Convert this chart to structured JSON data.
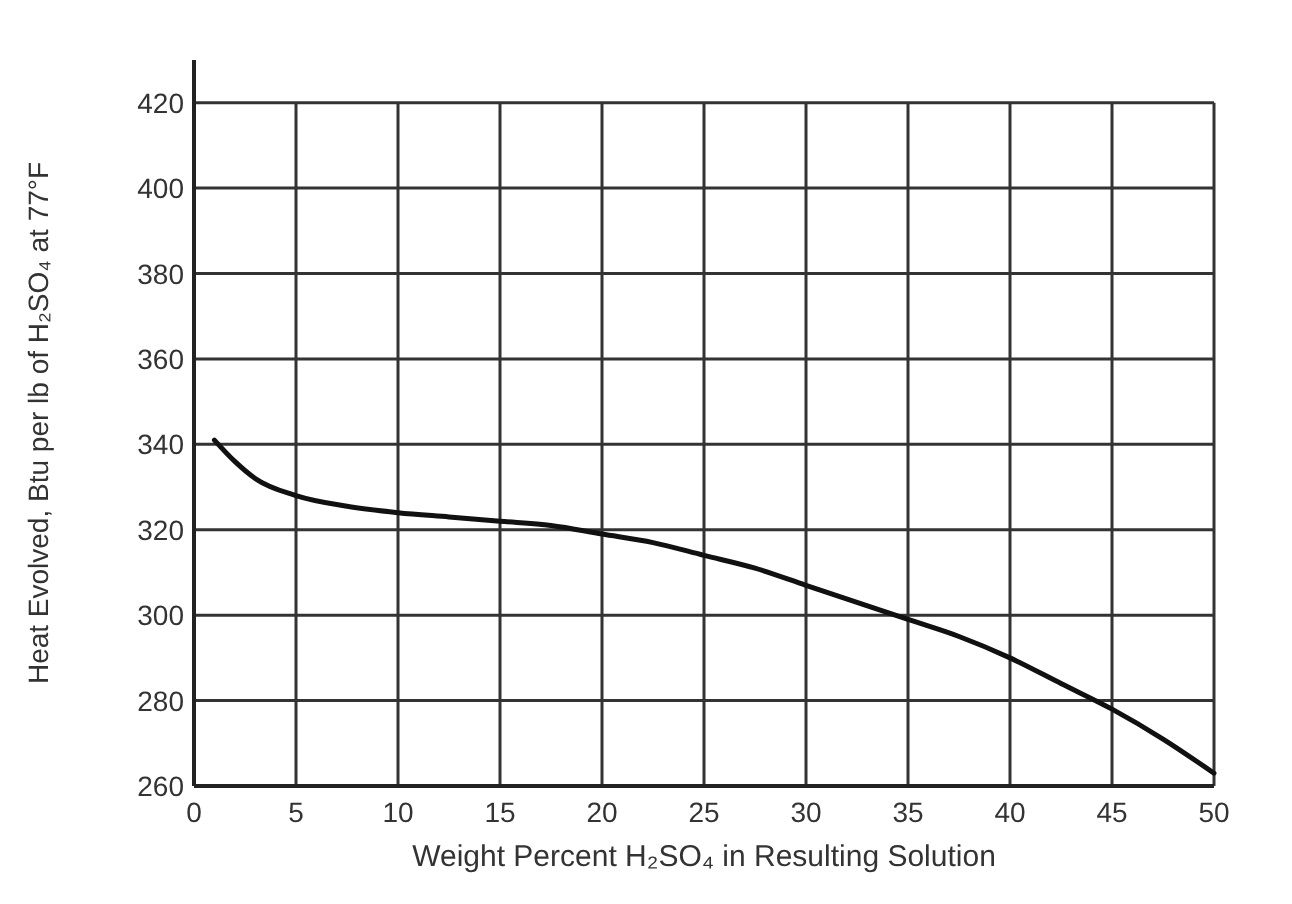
{
  "chart_data": {
    "type": "line",
    "xlabel": "Weight Percent H₂SO₄ in Resulting Solution",
    "ylabel": "Heat Evolved, Btu per lb of H₂SO₄ at 77°F",
    "x": [
      1,
      2,
      3,
      5,
      7.5,
      10,
      12.5,
      15,
      17.5,
      20,
      22.5,
      25,
      27.5,
      30,
      32.5,
      35,
      37.5,
      40,
      42.5,
      45,
      47.5,
      50
    ],
    "series": [
      {
        "color": "#111111",
        "values": [
          341,
          336,
          332,
          328,
          325.5,
          324,
          323,
          322,
          321,
          319,
          317,
          314,
          311,
          307,
          303,
          299,
          295,
          290,
          284,
          278,
          271,
          263
        ]
      }
    ],
    "xlim": [
      0,
      50
    ],
    "xticks": [
      0,
      5,
      10,
      15,
      20,
      25,
      30,
      35,
      40,
      45,
      50
    ],
    "ylim": [
      260,
      430
    ],
    "yticks": [
      260,
      280,
      300,
      320,
      340,
      360,
      380,
      400,
      420
    ],
    "grid": true,
    "marker": "none",
    "line_style": "solid"
  }
}
